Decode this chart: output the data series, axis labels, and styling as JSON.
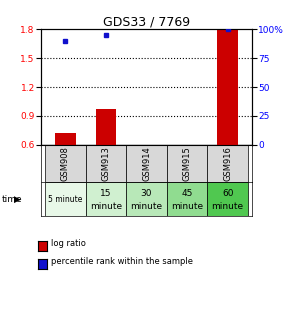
{
  "title": "GDS33 / 7769",
  "samples": [
    "GSM908",
    "GSM913",
    "GSM914",
    "GSM915",
    "GSM916"
  ],
  "time_labels_top": [
    "5 minute",
    "15",
    "30",
    "45",
    "60"
  ],
  "time_labels_bot": [
    "",
    "minute",
    "minute",
    "minute",
    "minute"
  ],
  "time_labels_small": [
    true,
    false,
    false,
    false,
    false
  ],
  "time_bg_colors": [
    "#e8f8e8",
    "#d0f0d0",
    "#b8e8b8",
    "#90dc90",
    "#50c850"
  ],
  "log_ratio": [
    0.72,
    0.97,
    0.6,
    0.6,
    1.8
  ],
  "percentile_rank": [
    90,
    95,
    null,
    null,
    100
  ],
  "ylim_left": [
    0.6,
    1.8
  ],
  "ylim_right": [
    0,
    100
  ],
  "yticks_left": [
    0.6,
    0.9,
    1.2,
    1.5,
    1.8
  ],
  "yticks_right": [
    0,
    25,
    50,
    75,
    100
  ],
  "bar_color": "#cc0000",
  "dot_color": "#1010cc",
  "bar_width": 0.5,
  "legend_items": [
    "log ratio",
    "percentile rank within the sample"
  ],
  "legend_colors": [
    "#cc0000",
    "#1010cc"
  ],
  "sample_bg": "#d8d8d8"
}
